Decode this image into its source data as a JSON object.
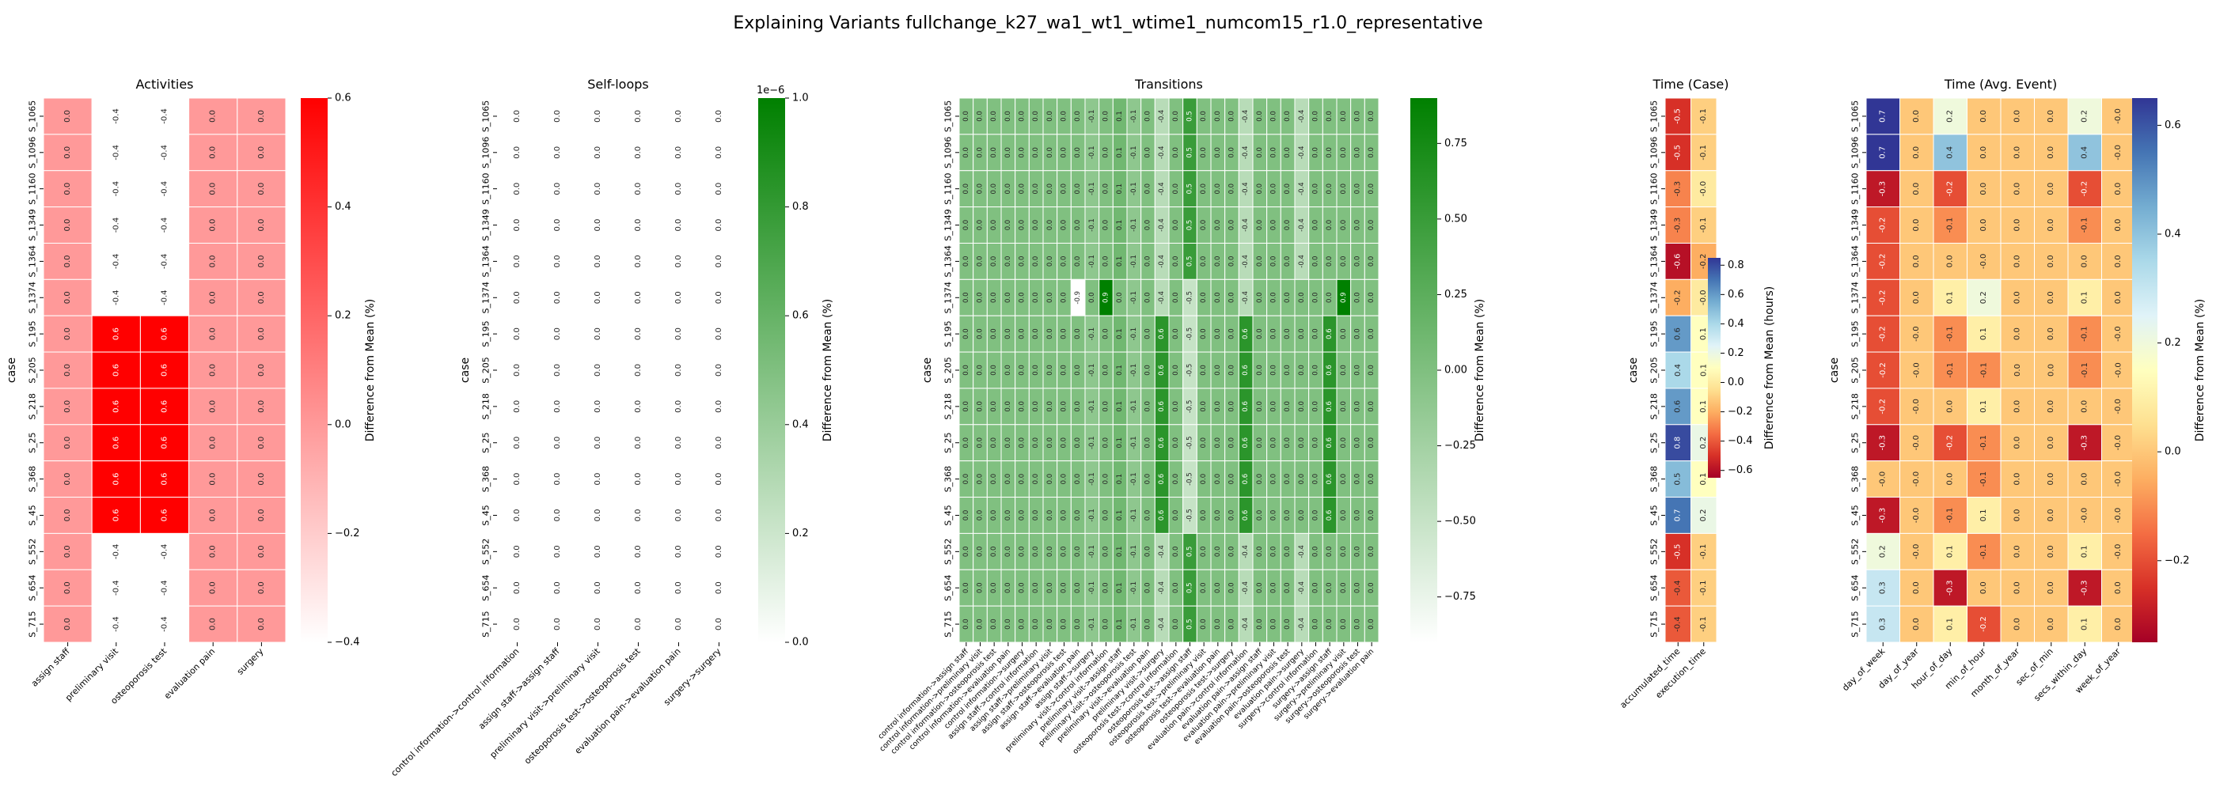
{
  "title": "Explaining Variants fullchange_k27_wa1_wt1_wtime1_numcom15_r1.0_representative",
  "cases": [
    "S_1065",
    "S_1096",
    "S_1160",
    "S_1349",
    "S_1364",
    "S_1374",
    "S_195",
    "S_205",
    "S_218",
    "S_25",
    "S_368",
    "S_45",
    "S_552",
    "S_654",
    "S_715"
  ],
  "chart_data": [
    {
      "type": "heatmap",
      "title": "Activities",
      "ylabel": "case",
      "colorbar_label": "Difference from Mean (%)",
      "colormap": "white-red",
      "vlim": [
        -0.4,
        0.6
      ],
      "colorbar_ticks": [
        "0.6",
        "0.4",
        "0.2",
        "0.0",
        "−0.2",
        "−0.4"
      ],
      "columns": [
        "assign staff",
        "preliminary visit",
        "osteoporosis test",
        "evaluation pain",
        "surgery"
      ],
      "values": [
        [
          0.0,
          -0.4,
          -0.4,
          0.0,
          0.0
        ],
        [
          0.0,
          -0.4,
          -0.4,
          0.0,
          0.0
        ],
        [
          0.0,
          -0.4,
          -0.4,
          0.0,
          0.0
        ],
        [
          0.0,
          -0.4,
          -0.4,
          0.0,
          0.0
        ],
        [
          0.0,
          -0.4,
          -0.4,
          0.0,
          0.0
        ],
        [
          0.0,
          -0.4,
          -0.4,
          0.0,
          0.0
        ],
        [
          0.0,
          0.6,
          0.6,
          0.0,
          0.0
        ],
        [
          0.0,
          0.6,
          0.6,
          0.0,
          0.0
        ],
        [
          0.0,
          0.6,
          0.6,
          0.0,
          0.0
        ],
        [
          0.0,
          0.6,
          0.6,
          0.0,
          0.0
        ],
        [
          0.0,
          0.6,
          0.6,
          0.0,
          0.0
        ],
        [
          0.0,
          0.6,
          0.6,
          0.0,
          0.0
        ],
        [
          0.0,
          -0.4,
          -0.4,
          0.0,
          0.0
        ],
        [
          0.0,
          -0.4,
          -0.4,
          0.0,
          0.0
        ],
        [
          0.0,
          -0.4,
          -0.4,
          0.0,
          0.0
        ]
      ]
    },
    {
      "type": "heatmap",
      "title": "Self-loops",
      "ylabel": "case",
      "colorbar_label": "Difference from Mean (%)",
      "colormap": "white-green",
      "vlim": [
        0,
        1
      ],
      "colorbar_exponent": "1e−6",
      "colorbar_ticks": [
        "1.0",
        "0.8",
        "0.6",
        "0.4",
        "0.2",
        "0.0"
      ],
      "columns": [
        "control information->control information",
        "assign staff->assign staff",
        "preliminary visit->preliminary visit",
        "osteoporosis test->osteoporosis test",
        "evaluation pain->evaluation pain",
        "surgery->surgery"
      ],
      "values": [
        [
          0,
          0,
          0,
          0,
          0,
          0
        ],
        [
          0,
          0,
          0,
          0,
          0,
          0
        ],
        [
          0,
          0,
          0,
          0,
          0,
          0
        ],
        [
          0,
          0,
          0,
          0,
          0,
          0
        ],
        [
          0,
          0,
          0,
          0,
          0,
          0
        ],
        [
          0,
          0,
          0,
          0,
          0,
          0
        ],
        [
          0,
          0,
          0,
          0,
          0,
          0
        ],
        [
          0,
          0,
          0,
          0,
          0,
          0
        ],
        [
          0,
          0,
          0,
          0,
          0,
          0
        ],
        [
          0,
          0,
          0,
          0,
          0,
          0
        ],
        [
          0,
          0,
          0,
          0,
          0,
          0
        ],
        [
          0,
          0,
          0,
          0,
          0,
          0
        ],
        [
          0,
          0,
          0,
          0,
          0,
          0
        ],
        [
          0,
          0,
          0,
          0,
          0,
          0
        ],
        [
          0,
          0,
          0,
          0,
          0,
          0
        ]
      ]
    },
    {
      "type": "heatmap",
      "title": "Transitions",
      "ylabel": "case",
      "colorbar_label": "Difference from Mean (%)",
      "colormap": "white-green",
      "vlim": [
        -0.9,
        0.9
      ],
      "colorbar_ticks": [
        "0.75",
        "0.50",
        "0.25",
        "0.00",
        "−0.25",
        "−0.50",
        "−0.75"
      ],
      "columns": [
        "control information->assign staff",
        "control information->preliminary visit",
        "control information->osteoporosis test",
        "control information->evaluation pain",
        "control information->surgery",
        "assign staff->control information",
        "assign staff->preliminary visit",
        "assign staff->osteoporosis test",
        "assign staff->evaluation pain",
        "assign staff->surgery",
        "preliminary visit->control information",
        "preliminary visit->assign staff",
        "preliminary visit->osteoporosis test",
        "preliminary visit->evaluation pain",
        "preliminary visit->surgery",
        "osteoporosis test->control information",
        "osteoporosis test->assign staff",
        "osteoporosis test->preliminary visit",
        "osteoporosis test->evaluation pain",
        "osteoporosis test->surgery",
        "evaluation pain->control information",
        "evaluation pain->assign staff",
        "evaluation pain->preliminary visit",
        "evaluation pain->osteoporosis test",
        "evaluation pain->surgery",
        "surgery->control information",
        "surgery->assign staff",
        "surgery->preliminary visit",
        "surgery->osteoporosis test",
        "surgery->evaluation pain"
      ],
      "row_patterns": {
        "A": [
          0.0,
          0.0,
          0.0,
          0.0,
          0.0,
          0.0,
          0.0,
          0.0,
          0.0,
          -0.1,
          0.0,
          0.1,
          -0.1,
          0.0,
          -0.4,
          0.0,
          0.5,
          0.0,
          0.0,
          0.0,
          -0.4,
          0.0,
          0.0,
          0.0,
          -0.4,
          0.0,
          0.0,
          0.0,
          0.0,
          0.0
        ],
        "B": [
          0.0,
          0.0,
          0.0,
          0.0,
          0.0,
          0.0,
          0.0,
          0.0,
          -0.9,
          0.0,
          0.9,
          0.0,
          -0.1,
          0.0,
          -0.4,
          0.0,
          -0.5,
          0.0,
          0.0,
          0.0,
          -0.4,
          0.0,
          0.0,
          0.0,
          0.0,
          0.0,
          0.0,
          0.9,
          0.0,
          0.0
        ],
        "C": [
          0.0,
          0.0,
          0.0,
          0.0,
          0.0,
          0.0,
          0.0,
          0.0,
          0.0,
          -0.1,
          0.0,
          0.1,
          -0.1,
          0.0,
          0.6,
          0.0,
          -0.5,
          0.0,
          0.0,
          0.0,
          0.6,
          0.0,
          0.0,
          0.0,
          0.0,
          0.0,
          0.6,
          0.0,
          0.0,
          0.0
        ]
      },
      "row_pattern_keys": [
        "A",
        "A",
        "A",
        "A",
        "A",
        "B",
        "C",
        "C",
        "C",
        "C",
        "C",
        "C",
        "A",
        "A",
        "A"
      ]
    },
    {
      "type": "heatmap",
      "title": "Time (Case)",
      "ylabel": "case",
      "colorbar_label": "Difference from Mean (hours)",
      "colormap": "RdYlBu",
      "vlim": [
        -0.65,
        0.85
      ],
      "colorbar_ticks": [
        "0.8",
        "0.6",
        "0.4",
        "0.2",
        "0.0",
        "−0.2",
        "−0.4",
        "−0.6"
      ],
      "columns": [
        "accumulated_time",
        "execution_time"
      ],
      "values": [
        [
          -0.5,
          -0.1
        ],
        [
          -0.5,
          -0.1
        ],
        [
          -0.3,
          -0.0
        ],
        [
          -0.3,
          -0.1
        ],
        [
          -0.6,
          -0.2
        ],
        [
          -0.2,
          -0.0
        ],
        [
          0.6,
          0.1
        ],
        [
          0.4,
          0.1
        ],
        [
          0.6,
          0.1
        ],
        [
          0.8,
          0.2
        ],
        [
          0.5,
          0.1
        ],
        [
          0.7,
          0.2
        ],
        [
          -0.5,
          -0.1
        ],
        [
          -0.4,
          -0.1
        ],
        [
          -0.4,
          -0.1
        ]
      ]
    },
    {
      "type": "heatmap",
      "title": "Time (Avg. Event)",
      "ylabel": "case",
      "colorbar_label": "Difference from Mean (%)",
      "colormap": "RdYlBu",
      "vlim": [
        -0.35,
        0.65
      ],
      "colorbar_ticks": [
        "0.6",
        "0.4",
        "0.2",
        "0.0",
        "−0.2"
      ],
      "columns": [
        "day_of_week",
        "day_of_year",
        "hour_of_day",
        "min_of_hour",
        "month_of_year",
        "sec_of_min",
        "secs_within_day",
        "week_of_year"
      ],
      "values": [
        [
          0.7,
          0.0,
          0.2,
          0.0,
          0.0,
          0.0,
          0.2,
          -0.0
        ],
        [
          0.7,
          0.0,
          0.4,
          0.0,
          0.0,
          0.0,
          0.4,
          -0.0
        ],
        [
          -0.3,
          0.0,
          -0.2,
          0.0,
          0.0,
          0.0,
          -0.2,
          0.0
        ],
        [
          -0.2,
          0.0,
          -0.1,
          0.0,
          0.0,
          0.0,
          -0.1,
          0.0
        ],
        [
          -0.2,
          0.0,
          0.0,
          -0.0,
          0.0,
          0.0,
          0.0,
          0.0
        ],
        [
          -0.2,
          0.0,
          0.1,
          0.2,
          0.0,
          0.0,
          0.1,
          0.0
        ],
        [
          -0.2,
          -0.0,
          -0.1,
          0.1,
          0.0,
          0.0,
          -0.1,
          -0.0
        ],
        [
          -0.2,
          -0.0,
          -0.1,
          -0.1,
          0.0,
          0.0,
          -0.1,
          -0.0
        ],
        [
          -0.2,
          -0.0,
          0.0,
          0.1,
          0.0,
          0.0,
          0.0,
          -0.0
        ],
        [
          -0.3,
          -0.0,
          -0.2,
          -0.1,
          0.0,
          0.0,
          -0.3,
          -0.0
        ],
        [
          -0.0,
          -0.0,
          0.0,
          -0.1,
          0.0,
          0.0,
          0.0,
          -0.0
        ],
        [
          -0.3,
          -0.0,
          -0.1,
          0.1,
          0.0,
          0.0,
          -0.0,
          -0.0
        ],
        [
          0.2,
          -0.0,
          0.1,
          -0.1,
          0.0,
          0.0,
          0.1,
          -0.0
        ],
        [
          0.3,
          0.0,
          -0.3,
          0.0,
          0.0,
          0.0,
          -0.3,
          0.0
        ],
        [
          0.3,
          0.0,
          0.1,
          -0.2,
          0.0,
          0.0,
          0.1,
          0.0
        ]
      ]
    }
  ]
}
